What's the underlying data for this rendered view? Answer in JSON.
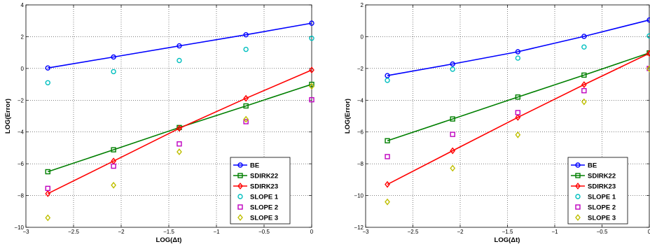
{
  "chart_data": [
    {
      "type": "line",
      "xlabel": "LOG(Δt)",
      "ylabel": "LOG(Error)",
      "xlim": [
        -3,
        0
      ],
      "ylim": [
        -10,
        4
      ],
      "xticks": [
        -3,
        -2.5,
        -2,
        -1.5,
        -1,
        -0.5,
        0
      ],
      "xtick_labels": [
        "−3",
        "−2.5",
        "−2",
        "−1.5",
        "−1",
        "−0.5",
        "0"
      ],
      "yticks": [
        -10,
        -8,
        -6,
        -4,
        -2,
        0,
        2,
        4
      ],
      "ytick_labels": [
        "−10",
        "−8",
        "−6",
        "−4",
        "−2",
        "0",
        "2",
        "4"
      ],
      "grid": true,
      "legend_position": "bottom-right",
      "x": [
        -2.77,
        -2.08,
        -1.39,
        -0.69,
        0
      ],
      "series": [
        {
          "name": "BE",
          "color": "#0000ff",
          "marker": "circle",
          "line": true,
          "values": [
            0.03,
            0.72,
            1.42,
            2.12,
            2.85
          ]
        },
        {
          "name": "SDIRK22",
          "color": "#007f00",
          "marker": "square",
          "line": true,
          "values": [
            -6.5,
            -5.12,
            -3.72,
            -2.36,
            -1.0
          ]
        },
        {
          "name": "SDIRK23",
          "color": "#ff0000",
          "marker": "diamond",
          "line": true,
          "values": [
            -7.88,
            -5.83,
            -3.77,
            -1.88,
            -0.1
          ]
        },
        {
          "name": "SLOPE 1",
          "color": "#00bfbf",
          "marker": "circle",
          "line": false,
          "values": [
            -0.9,
            -0.2,
            0.5,
            1.2,
            1.9
          ]
        },
        {
          "name": "SLOPE 2",
          "color": "#bf00bf",
          "marker": "square",
          "line": false,
          "values": [
            -7.55,
            -6.15,
            -4.75,
            -3.35,
            -1.97
          ]
        },
        {
          "name": "SLOPE 3",
          "color": "#bfbf00",
          "marker": "diamond",
          "line": false,
          "values": [
            -9.4,
            -7.35,
            -5.25,
            -3.2,
            -1.12
          ]
        }
      ]
    },
    {
      "type": "line",
      "xlabel": "LOG(Δt)",
      "ylabel": "LOG(Error)",
      "xlim": [
        -3,
        0
      ],
      "ylim": [
        -12,
        2
      ],
      "xticks": [
        -3,
        -2.5,
        -2,
        -1.5,
        -1,
        -0.5,
        0
      ],
      "xtick_labels": [
        "−3",
        "−2.5",
        "−2",
        "−1.5",
        "−1",
        "−0.5",
        "0"
      ],
      "yticks": [
        -12,
        -10,
        -8,
        -6,
        -4,
        -2,
        0,
        2
      ],
      "ytick_labels": [
        "−12",
        "−10",
        "−8",
        "−6",
        "−4",
        "−2",
        "0",
        "2"
      ],
      "grid": true,
      "legend_position": "bottom-right",
      "x": [
        -2.77,
        -2.08,
        -1.39,
        -0.69,
        0
      ],
      "series": [
        {
          "name": "BE",
          "color": "#0000ff",
          "marker": "circle",
          "line": true,
          "values": [
            -2.45,
            -1.72,
            -0.95,
            0.02,
            1.05
          ]
        },
        {
          "name": "SDIRK22",
          "color": "#007f00",
          "marker": "square",
          "line": true,
          "values": [
            -6.55,
            -5.18,
            -3.8,
            -2.42,
            -1.02
          ]
        },
        {
          "name": "SDIRK23",
          "color": "#ff0000",
          "marker": "diamond",
          "line": true,
          "values": [
            -9.3,
            -7.18,
            -5.08,
            -3.02,
            -1.05
          ]
        },
        {
          "name": "SLOPE 1",
          "color": "#00bfbf",
          "marker": "circle",
          "line": false,
          "values": [
            -2.75,
            -2.05,
            -1.35,
            -0.65,
            0.05
          ]
        },
        {
          "name": "SLOPE 2",
          "color": "#bf00bf",
          "marker": "square",
          "line": false,
          "values": [
            -7.55,
            -6.15,
            -4.78,
            -3.4,
            -2.0
          ]
        },
        {
          "name": "SLOPE 3",
          "color": "#bfbf00",
          "marker": "diamond",
          "line": false,
          "values": [
            -10.4,
            -8.28,
            -6.18,
            -4.1,
            -2.02
          ]
        }
      ]
    }
  ]
}
